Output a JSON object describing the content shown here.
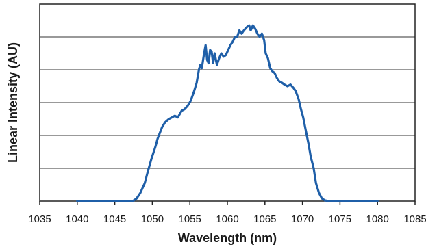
{
  "chart_data": {
    "type": "line",
    "title": "",
    "xlabel": "Wavelength (nm)",
    "ylabel": "Linear Intensity (AU)",
    "xlim": [
      1035,
      1085
    ],
    "ylim": [
      0,
      6
    ],
    "x_ticks": [
      1035,
      1040,
      1045,
      1050,
      1055,
      1060,
      1065,
      1070,
      1075,
      1080,
      1085
    ],
    "y_gridlines": [
      1,
      2,
      3,
      4,
      5
    ],
    "y_tick_labels_shown": false,
    "grid": "horizontal",
    "line_color": "#1f5fa8",
    "series": [
      {
        "x": [
          1040,
          1047.4,
          1047.9,
          1048.4,
          1049.0,
          1049.4,
          1049.9,
          1050.4,
          1050.7,
          1051.3,
          1051.7,
          1052.2,
          1052.6,
          1053.0,
          1053.4,
          1053.9,
          1054.3,
          1054.7,
          1055.1,
          1055.5,
          1055.9,
          1056.2,
          1056.4,
          1056.6,
          1056.9,
          1057.1,
          1057.3,
          1057.5,
          1057.7,
          1057.9,
          1058.1,
          1058.3,
          1058.6,
          1058.9,
          1059.2,
          1059.5,
          1059.8,
          1060.1,
          1060.4,
          1060.7,
          1061.0,
          1061.3,
          1061.6,
          1061.9,
          1062.2,
          1062.6,
          1062.9,
          1063.1,
          1063.4,
          1063.7,
          1064.0,
          1064.3,
          1064.6,
          1064.9,
          1065.1,
          1065.4,
          1065.7,
          1066.0,
          1066.3,
          1066.6,
          1066.9,
          1067.3,
          1067.6,
          1068.0,
          1068.4,
          1068.8,
          1069.1,
          1069.5,
          1069.8,
          1070.1,
          1070.4,
          1070.8,
          1071.1,
          1071.5,
          1071.8,
          1072.2,
          1072.6,
          1073.0,
          1073.5,
          1074.0,
          1074.5,
          1080
        ],
        "values": [
          0,
          0,
          0.08,
          0.25,
          0.55,
          0.9,
          1.3,
          1.65,
          1.9,
          2.25,
          2.4,
          2.5,
          2.55,
          2.6,
          2.55,
          2.75,
          2.8,
          2.9,
          3.05,
          3.3,
          3.6,
          4.0,
          4.15,
          4.05,
          4.5,
          4.75,
          4.3,
          4.2,
          4.6,
          4.55,
          4.2,
          4.5,
          4.15,
          4.35,
          4.5,
          4.4,
          4.45,
          4.6,
          4.75,
          4.85,
          5.0,
          5.0,
          5.2,
          5.1,
          5.2,
          5.3,
          5.35,
          5.2,
          5.35,
          5.25,
          5.1,
          5.0,
          5.1,
          4.9,
          4.5,
          4.35,
          4.05,
          3.95,
          3.9,
          3.75,
          3.65,
          3.6,
          3.55,
          3.5,
          3.55,
          3.45,
          3.35,
          3.1,
          2.8,
          2.55,
          2.2,
          1.75,
          1.35,
          1.0,
          0.55,
          0.25,
          0.08,
          0.02,
          0,
          0,
          0,
          0
        ]
      }
    ]
  }
}
